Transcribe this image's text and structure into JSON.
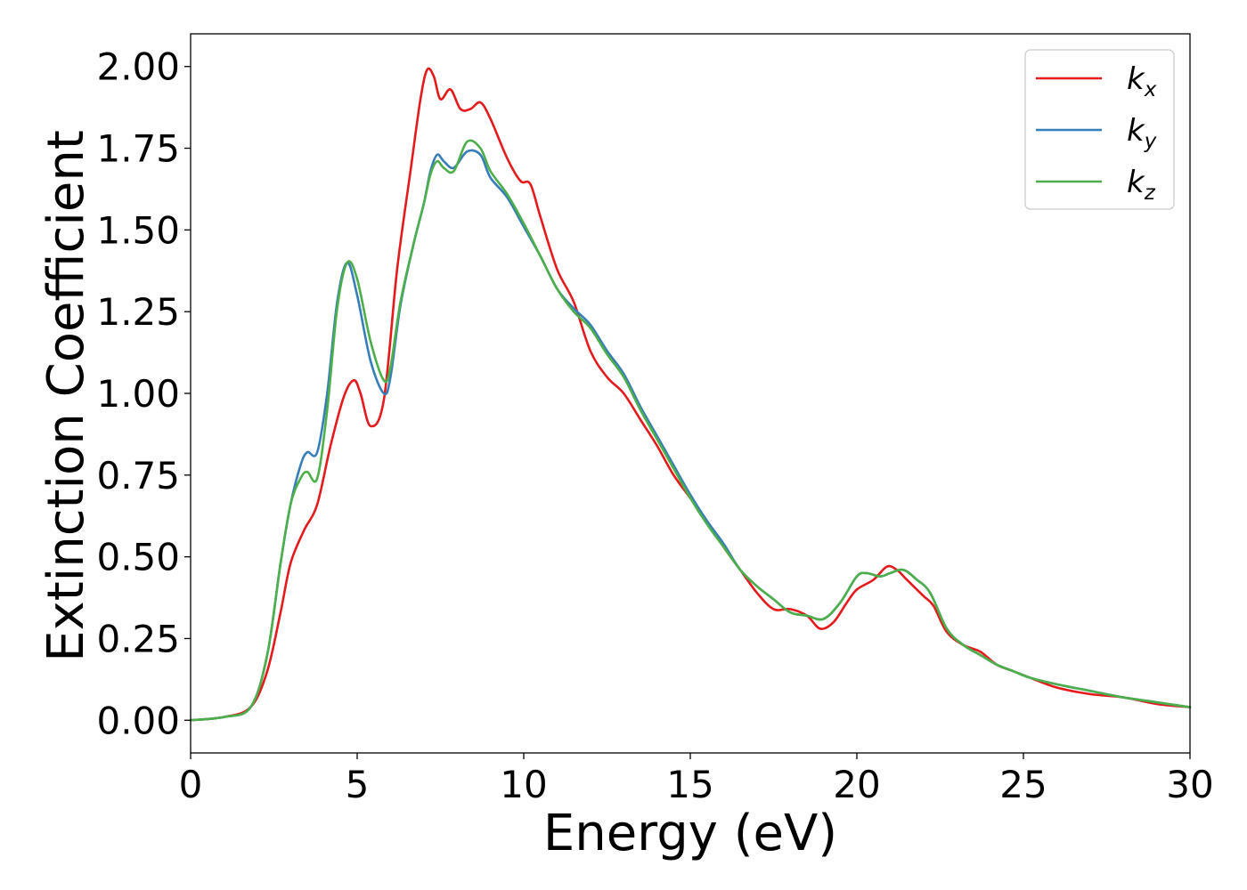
{
  "chart_data": {
    "type": "line",
    "title": "",
    "xlabel": "Energy (eV)",
    "ylabel": "Extinction Coefficient",
    "xlim": [
      0,
      30
    ],
    "ylim": [
      -0.1,
      2.1
    ],
    "xticks": [
      0,
      5,
      10,
      15,
      20,
      25,
      30
    ],
    "xtick_labels": [
      "0",
      "5",
      "10",
      "15",
      "20",
      "25",
      "30"
    ],
    "yticks": [
      0,
      0.25,
      0.5,
      0.75,
      1.0,
      1.25,
      1.5,
      1.75,
      2.0
    ],
    "ytick_labels": [
      "0.00",
      "0.25",
      "0.50",
      "0.75",
      "1.00",
      "1.25",
      "1.50",
      "1.75",
      "2.00"
    ],
    "grid": false,
    "legend_position": "top-right",
    "series": [
      {
        "name": "k",
        "subscript": "x",
        "color": "#e41a1c",
        "x": [
          0,
          1,
          1.8,
          2.3,
          2.7,
          3.0,
          3.4,
          3.8,
          4.2,
          4.6,
          4.9,
          5.1,
          5.4,
          5.8,
          6.2,
          6.6,
          6.9,
          7.1,
          7.3,
          7.5,
          7.8,
          8.1,
          8.4,
          8.7,
          9.0,
          9.5,
          9.9,
          10.2,
          10.5,
          11.0,
          11.5,
          12.0,
          12.5,
          13.0,
          13.5,
          14.0,
          14.5,
          15.0,
          15.5,
          16.0,
          16.5,
          17.0,
          17.5,
          18.0,
          18.5,
          18.9,
          19.3,
          19.7,
          20.0,
          20.5,
          20.9,
          21.2,
          21.5,
          22.0,
          22.3,
          22.7,
          23.2,
          23.7,
          24.2,
          24.7,
          25.2,
          26.0,
          27.0,
          28.0,
          29.0,
          30.0
        ],
        "y": [
          0.0,
          0.01,
          0.04,
          0.15,
          0.33,
          0.48,
          0.58,
          0.66,
          0.84,
          0.99,
          1.04,
          1.0,
          0.9,
          0.98,
          1.38,
          1.68,
          1.9,
          1.99,
          1.97,
          1.9,
          1.93,
          1.87,
          1.87,
          1.89,
          1.84,
          1.72,
          1.65,
          1.64,
          1.54,
          1.38,
          1.28,
          1.13,
          1.05,
          1.0,
          0.92,
          0.84,
          0.75,
          0.68,
          0.61,
          0.53,
          0.46,
          0.39,
          0.34,
          0.34,
          0.32,
          0.28,
          0.3,
          0.36,
          0.4,
          0.43,
          0.47,
          0.46,
          0.43,
          0.38,
          0.35,
          0.27,
          0.23,
          0.21,
          0.17,
          0.15,
          0.13,
          0.1,
          0.08,
          0.07,
          0.05,
          0.04
        ]
      },
      {
        "name": "k",
        "subscript": "y",
        "color": "#377eb8",
        "x": [
          0,
          1,
          1.8,
          2.3,
          2.7,
          3.0,
          3.3,
          3.5,
          3.8,
          4.1,
          4.4,
          4.7,
          5.0,
          5.4,
          5.8,
          6.0,
          6.3,
          6.7,
          7.0,
          7.2,
          7.4,
          7.6,
          7.9,
          8.3,
          8.7,
          9.0,
          9.5,
          10.0,
          10.5,
          11.0,
          11.5,
          12.0,
          12.5,
          13.0,
          13.5,
          14.0,
          14.5,
          15.0,
          15.5,
          16.0,
          16.5,
          17.0,
          17.5,
          18.0,
          18.5,
          19.0,
          19.5,
          20.0,
          20.3,
          20.7,
          21.0,
          21.4,
          21.8,
          22.2,
          22.7,
          23.2,
          23.7,
          24.2,
          24.7,
          25.2,
          26.0,
          27.0,
          28.0,
          29.0,
          30.0
        ],
        "y": [
          0.0,
          0.01,
          0.04,
          0.2,
          0.48,
          0.66,
          0.78,
          0.82,
          0.82,
          1.0,
          1.28,
          1.4,
          1.3,
          1.1,
          1.0,
          1.05,
          1.27,
          1.46,
          1.58,
          1.68,
          1.73,
          1.71,
          1.69,
          1.74,
          1.73,
          1.66,
          1.6,
          1.51,
          1.42,
          1.32,
          1.26,
          1.21,
          1.13,
          1.06,
          0.96,
          0.87,
          0.78,
          0.69,
          0.61,
          0.54,
          0.46,
          0.41,
          0.37,
          0.33,
          0.32,
          0.31,
          0.36,
          0.44,
          0.45,
          0.44,
          0.45,
          0.46,
          0.43,
          0.39,
          0.28,
          0.23,
          0.2,
          0.17,
          0.15,
          0.13,
          0.11,
          0.09,
          0.07,
          0.055,
          0.04
        ]
      },
      {
        "name": "k",
        "subscript": "z",
        "color": "#4daf4a",
        "x": [
          0,
          1,
          1.8,
          2.3,
          2.7,
          3.0,
          3.3,
          3.5,
          3.8,
          4.1,
          4.4,
          4.7,
          5.0,
          5.4,
          5.8,
          6.0,
          6.3,
          6.7,
          7.0,
          7.2,
          7.4,
          7.6,
          7.9,
          8.3,
          8.7,
          9.0,
          9.5,
          10.0,
          10.5,
          11.0,
          11.5,
          12.0,
          12.5,
          13.0,
          13.5,
          14.0,
          14.5,
          15.0,
          15.5,
          16.0,
          16.5,
          17.0,
          17.5,
          18.0,
          18.5,
          19.0,
          19.5,
          20.0,
          20.3,
          20.7,
          21.0,
          21.4,
          21.8,
          22.2,
          22.7,
          23.2,
          23.7,
          24.2,
          24.7,
          25.2,
          26.0,
          27.0,
          28.0,
          29.0,
          30.0
        ],
        "y": [
          0.0,
          0.01,
          0.04,
          0.2,
          0.48,
          0.66,
          0.74,
          0.76,
          0.74,
          0.95,
          1.26,
          1.4,
          1.35,
          1.16,
          1.04,
          1.08,
          1.28,
          1.46,
          1.58,
          1.67,
          1.71,
          1.69,
          1.68,
          1.77,
          1.75,
          1.68,
          1.61,
          1.52,
          1.42,
          1.32,
          1.25,
          1.2,
          1.12,
          1.05,
          0.95,
          0.86,
          0.77,
          0.68,
          0.6,
          0.53,
          0.46,
          0.41,
          0.37,
          0.33,
          0.32,
          0.31,
          0.36,
          0.44,
          0.45,
          0.44,
          0.45,
          0.46,
          0.43,
          0.39,
          0.28,
          0.23,
          0.2,
          0.17,
          0.15,
          0.13,
          0.11,
          0.09,
          0.07,
          0.055,
          0.04
        ]
      }
    ]
  }
}
